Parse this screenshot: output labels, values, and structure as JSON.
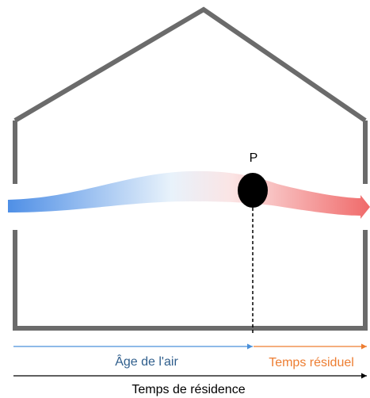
{
  "point": {
    "label": "P"
  },
  "labels": {
    "age": "Âge de l'air",
    "residual": "Temps résiduel",
    "residence": "Temps de résidence"
  }
}
